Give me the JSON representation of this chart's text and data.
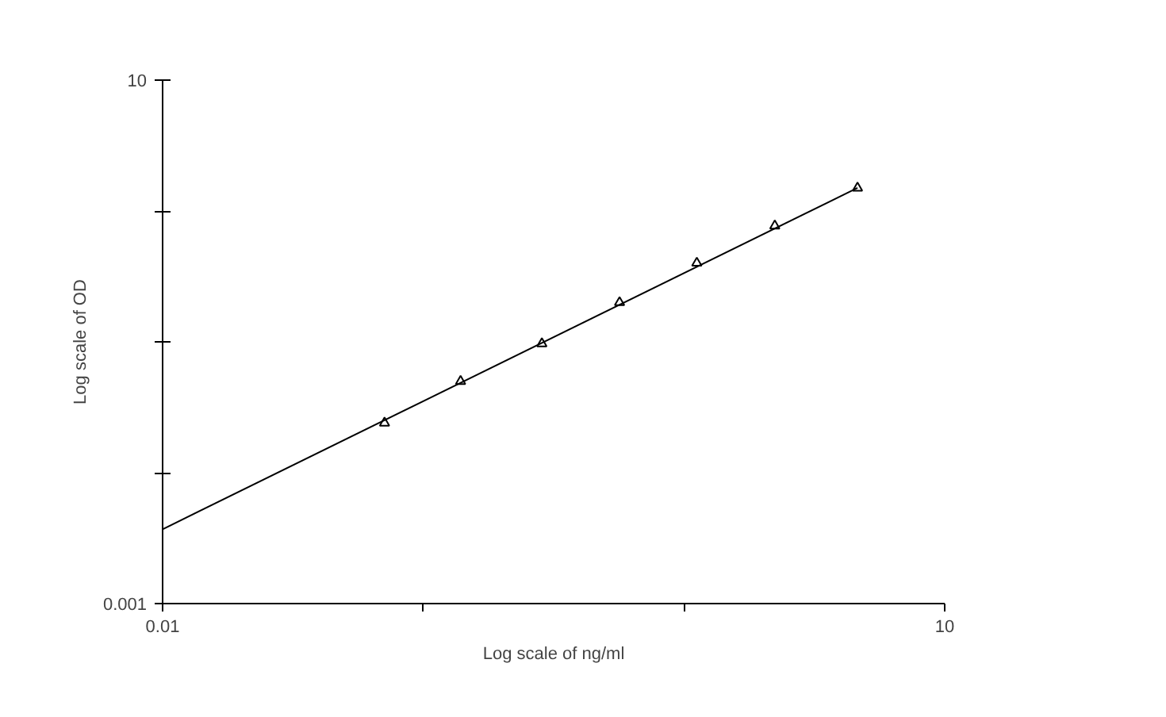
{
  "chart_data": {
    "type": "scatter",
    "xlabel": "Log scale of ng/ml",
    "ylabel": "Log scale of OD",
    "log": "xy",
    "grid": false,
    "marker": "triangle",
    "xlim": [
      0.01,
      10
    ],
    "ylim": [
      0.001,
      10
    ],
    "xticks": [
      0.01,
      {
        "value": 0.1,
        "label": null
      },
      {
        "value": 1,
        "label": null
      },
      10
    ],
    "yticks": [
      0.001,
      {
        "value": 0.01,
        "label": null
      },
      {
        "value": 0.1,
        "label": null
      },
      {
        "value": 1,
        "label": null
      },
      10
    ],
    "series": [
      {
        "color": "#000000",
        "x": [
          0.071,
          0.139,
          0.285,
          0.566,
          1.12,
          2.23,
          4.63
        ],
        "values": [
          0.024,
          0.05,
          0.097,
          0.2,
          0.4,
          0.77,
          1.5
        ]
      },
      {
        "type": "line",
        "marker": "none",
        "color": "#000000",
        "x": [
          0.01,
          4.63
        ],
        "values": [
          0.0037,
          1.5
        ]
      }
    ]
  }
}
